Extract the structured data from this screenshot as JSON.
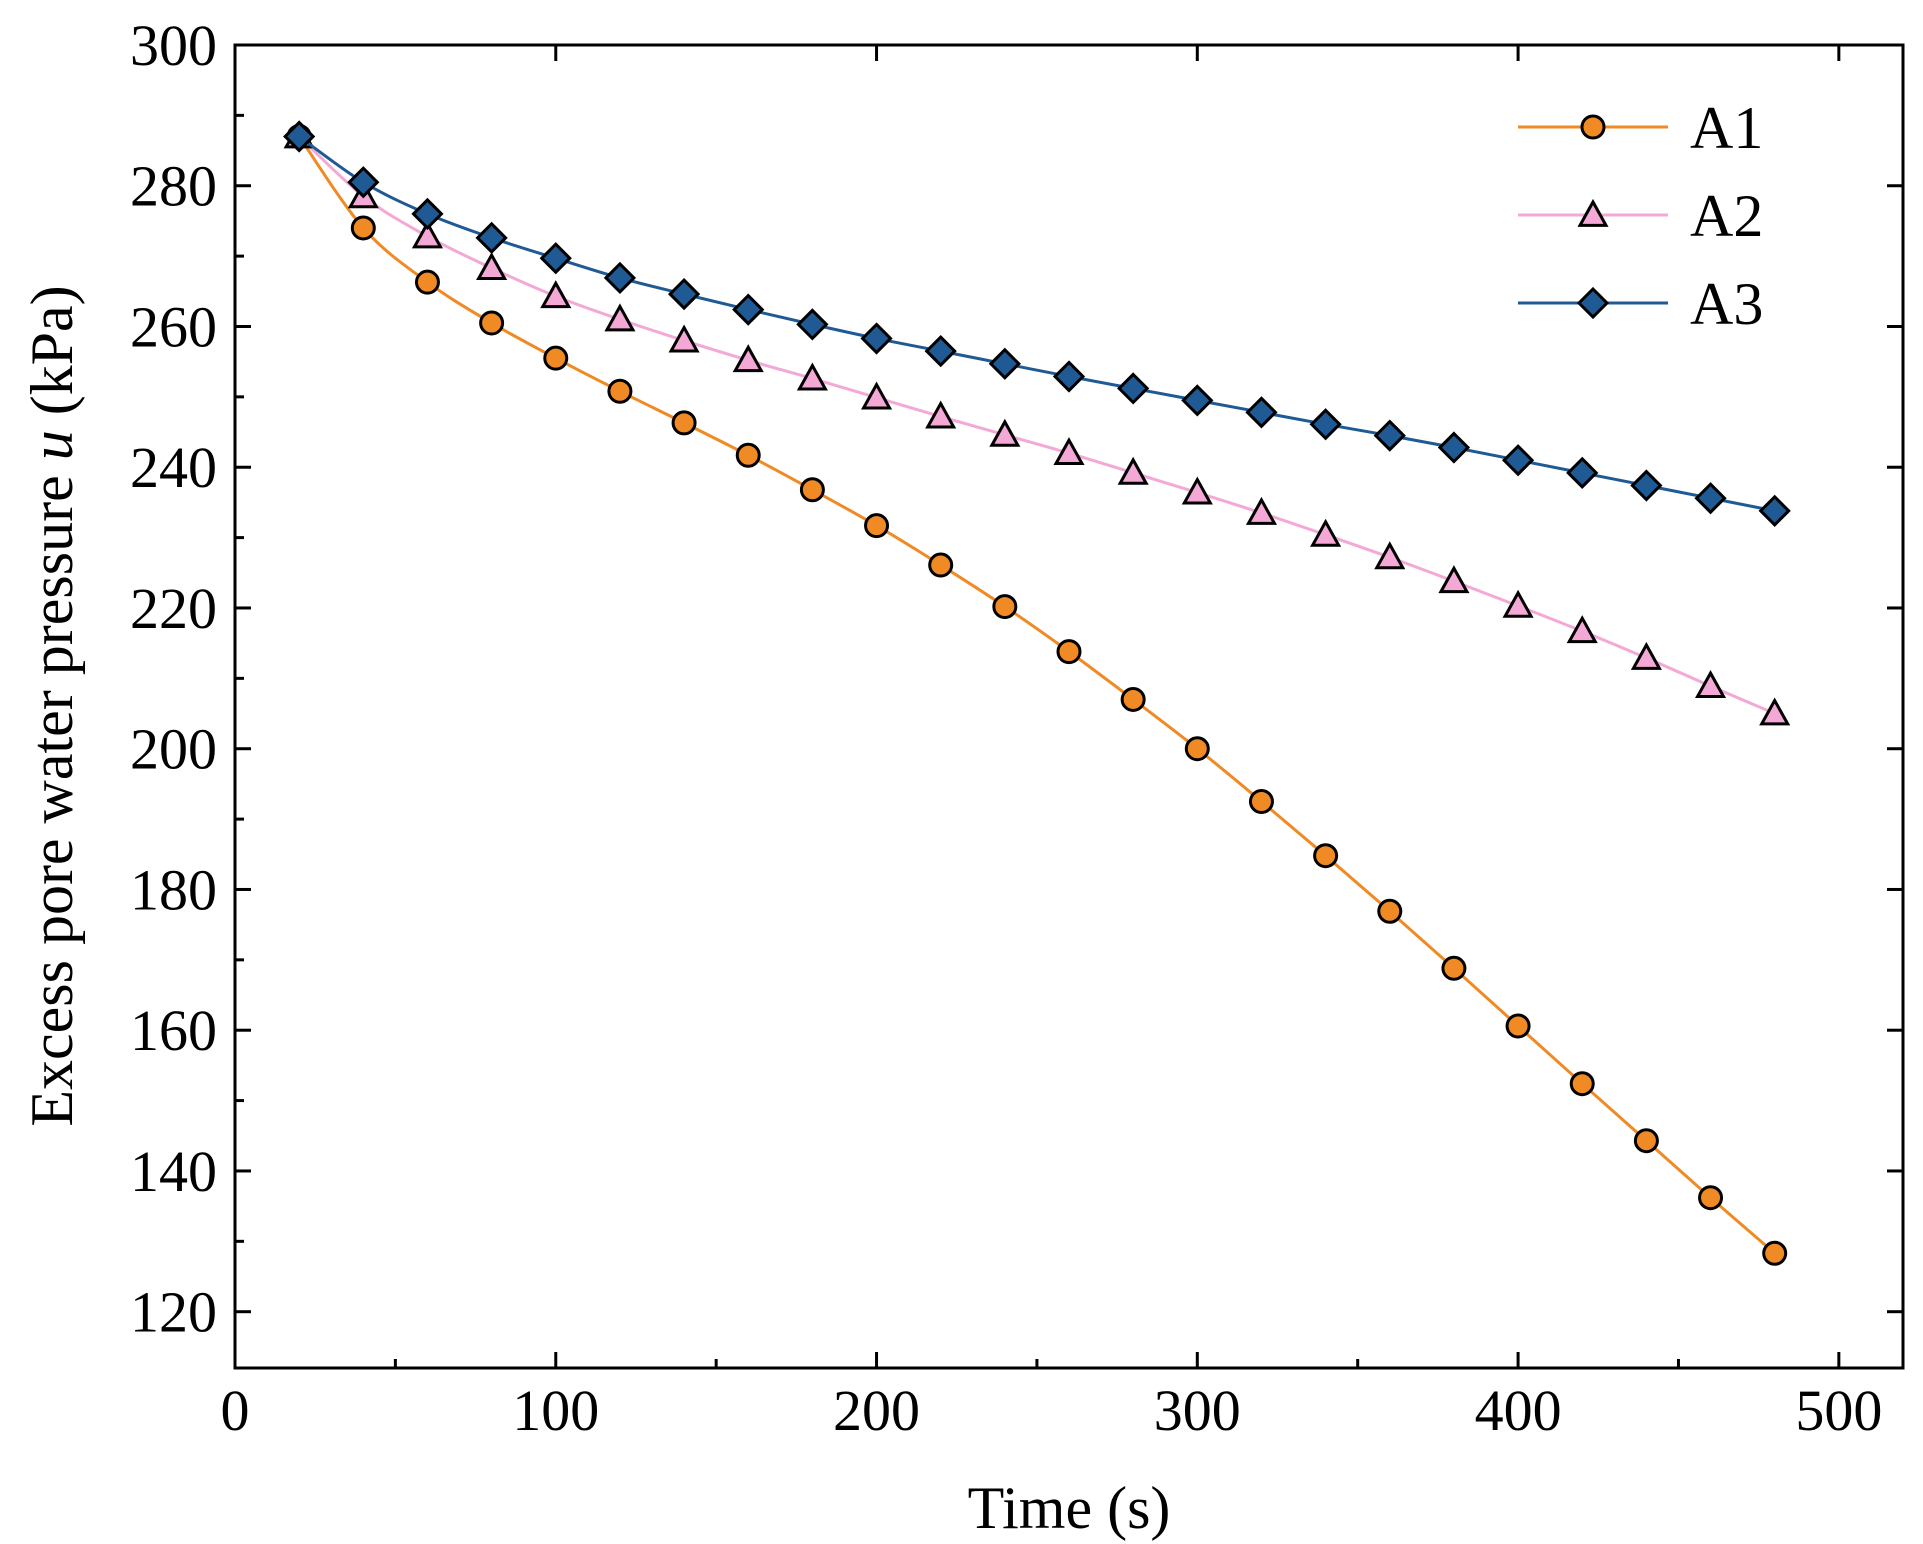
{
  "chart_data": {
    "type": "line",
    "title": "",
    "xlabel": "Time (s)",
    "ylabel_prefix": "Excess pore water pressure ",
    "ylabel_var": "u",
    "ylabel_suffix": " (kPa)",
    "xlim": [
      0,
      520
    ],
    "ylim": [
      112,
      300
    ],
    "xticks": [
      0,
      100,
      200,
      300,
      400,
      500
    ],
    "yticks": [
      120,
      140,
      160,
      180,
      200,
      220,
      240,
      260,
      280,
      300
    ],
    "grid": false,
    "legend_position": "top-right",
    "x": [
      20,
      40,
      60,
      80,
      100,
      120,
      140,
      160,
      180,
      200,
      220,
      240,
      260,
      280,
      300,
      320,
      340,
      360,
      380,
      400,
      420,
      440,
      460,
      480
    ],
    "series": [
      {
        "name": "A1",
        "color": "#f08a24",
        "marker": "circle",
        "marker_fill": "#f08a24",
        "values": [
          287,
          274,
          266.3,
          260.5,
          255.5,
          250.8,
          246.3,
          241.7,
          236.8,
          231.7,
          226.1,
          220.2,
          213.8,
          207,
          200,
          192.5,
          184.8,
          176.9,
          168.8,
          160.6,
          152.4,
          144.3,
          136.2,
          128.3
        ]
      },
      {
        "name": "A2",
        "color": "#f4a8d6",
        "marker": "triangle",
        "marker_fill": "#f4a8d6",
        "values": [
          287,
          278.5,
          272.8,
          268.3,
          264.3,
          261,
          258,
          255.2,
          252.6,
          249.9,
          247.2,
          244.6,
          242,
          239.2,
          236.4,
          233.5,
          230.4,
          227.2,
          223.8,
          220.3,
          216.7,
          212.9,
          208.9,
          205
        ]
      },
      {
        "name": "A3",
        "color": "#1f5a94",
        "marker": "diamond",
        "marker_fill": "#1f5a94",
        "values": [
          287,
          280.5,
          276,
          272.6,
          269.7,
          266.9,
          264.6,
          262.4,
          260.3,
          258.3,
          256.5,
          254.7,
          252.9,
          251.2,
          249.5,
          247.8,
          246.1,
          244.5,
          242.8,
          241,
          239.2,
          237.4,
          235.6,
          233.8
        ]
      }
    ]
  }
}
